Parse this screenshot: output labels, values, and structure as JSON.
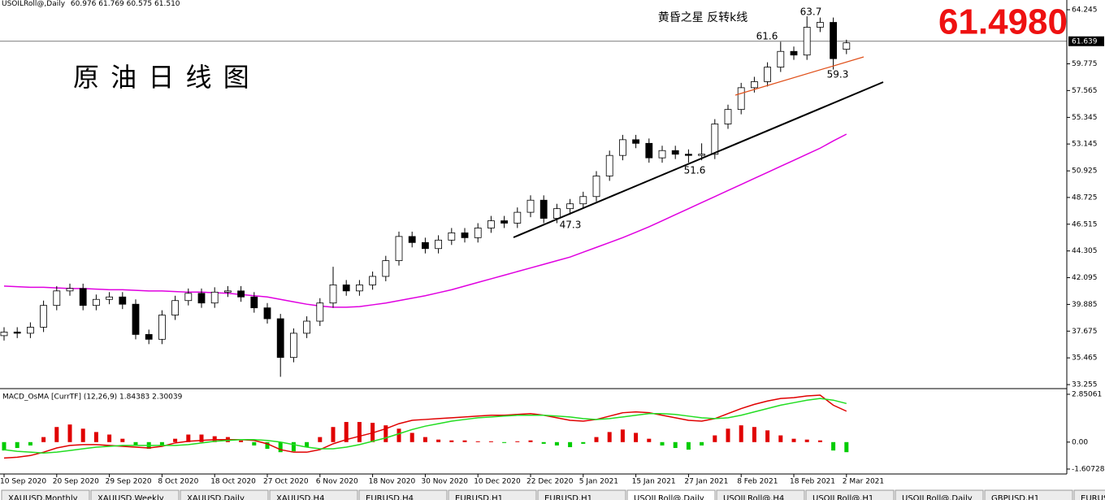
{
  "header": {
    "symbol": "USOILRoll@,Daily",
    "ohlc": [
      "60.976",
      "61.769",
      "60.575",
      "61.510"
    ]
  },
  "headline_price": "61.4980",
  "title": "原 油 日 线 图",
  "pattern_label": "黄昏之星  反转k线",
  "annotations": [
    "63.7",
    "61.6",
    "59.3",
    "51.6",
    "47.3"
  ],
  "tabs": [
    "XAUUSD,Monthly",
    "XAUUSD,Weekly",
    "XAUUSD,Daily",
    "XAUUSD,H4",
    "EURUSD,H4",
    "EURUSD,H1",
    "EURUSD,H1",
    "USOILRoll@,Daily",
    "USOILRoll@,H4",
    "USOILRoll@,H1",
    "USOILRoll@,Daily",
    "GBPUSD,H1",
    "EURUSD,H4"
  ],
  "chart_data": [
    {
      "type": "candlestick",
      "categories": [
        "10 Sep 2020",
        null,
        null,
        null,
        "20 Sep 2020",
        null,
        null,
        null,
        "29 Sep 2020",
        null,
        null,
        null,
        "8 Oct 2020",
        null,
        null,
        null,
        "18 Oct 2020",
        null,
        null,
        null,
        "27 Oct 2020",
        null,
        null,
        null,
        "6 Nov 2020",
        null,
        null,
        null,
        "18 Nov 2020",
        null,
        null,
        null,
        "30 Nov 2020",
        null,
        null,
        null,
        "10 Dec 2020",
        null,
        null,
        null,
        "22 Dec 2020",
        null,
        null,
        null,
        "5 Jan 2021",
        null,
        null,
        null,
        "15 Jan 2021",
        null,
        null,
        null,
        "27 Jan 2021",
        null,
        null,
        null,
        "8 Feb 2021",
        null,
        null,
        null,
        "18 Feb 2021",
        null,
        null,
        null,
        "2 Mar 2021"
      ],
      "open": [
        37.3,
        37.6,
        37.5,
        38.0,
        39.8,
        41.0,
        41.2,
        39.8,
        40.3,
        40.5,
        39.9,
        37.4,
        37.0,
        39.0,
        40.2,
        40.8,
        40.0,
        40.9,
        41.0,
        40.5,
        39.6,
        38.7,
        35.5,
        37.5,
        38.5,
        40.0,
        41.5,
        41.0,
        41.5,
        42.2,
        43.5,
        45.5,
        45.0,
        44.5,
        45.2,
        45.8,
        45.4,
        46.2,
        46.8,
        46.6,
        47.5,
        48.5,
        47.0,
        47.8,
        48.2,
        48.8,
        50.5,
        52.2,
        53.5,
        53.2,
        52.0,
        52.6,
        52.3,
        52.2,
        52.3,
        54.8,
        56.0,
        57.8,
        58.3,
        59.5,
        60.8,
        60.5,
        62.8,
        63.2,
        60.976
      ],
      "high": [
        38.0,
        38.0,
        38.4,
        40.2,
        41.4,
        41.6,
        41.6,
        40.7,
        40.9,
        40.9,
        40.3,
        37.8,
        39.4,
        40.6,
        41.2,
        41.2,
        41.3,
        41.4,
        41.4,
        40.9,
        40.0,
        39.1,
        37.9,
        38.9,
        40.4,
        43.0,
        41.9,
        41.9,
        42.6,
        43.9,
        45.9,
        45.9,
        45.4,
        45.6,
        46.2,
        46.2,
        46.6,
        47.2,
        47.2,
        47.9,
        48.9,
        48.9,
        48.2,
        48.6,
        49.2,
        50.9,
        52.6,
        53.9,
        53.9,
        53.6,
        53.0,
        53.0,
        52.7,
        53.2,
        55.2,
        56.4,
        58.2,
        58.7,
        59.9,
        61.6,
        61.2,
        63.7,
        63.6,
        63.6,
        61.769
      ],
      "low": [
        36.9,
        37.1,
        37.1,
        37.6,
        39.4,
        40.6,
        39.4,
        39.4,
        39.9,
        39.5,
        37.0,
        36.6,
        36.6,
        38.6,
        39.8,
        39.6,
        39.6,
        40.5,
        40.1,
        39.2,
        38.3,
        33.9,
        35.1,
        37.1,
        38.1,
        39.6,
        40.6,
        40.6,
        41.1,
        41.8,
        43.1,
        44.6,
        44.1,
        44.1,
        44.8,
        45.0,
        45.0,
        45.8,
        46.2,
        46.2,
        47.1,
        46.6,
        46.6,
        47.3,
        47.8,
        48.4,
        50.1,
        51.8,
        52.8,
        51.6,
        51.6,
        51.9,
        51.6,
        51.8,
        51.9,
        54.4,
        55.6,
        57.4,
        57.9,
        59.1,
        60.1,
        60.1,
        62.4,
        59.3,
        60.575
      ],
      "close": [
        37.6,
        37.5,
        38.0,
        39.8,
        41.0,
        41.2,
        39.8,
        40.3,
        40.5,
        39.9,
        37.4,
        37.0,
        39.0,
        40.2,
        40.8,
        40.0,
        40.9,
        41.0,
        40.5,
        39.6,
        38.7,
        35.5,
        37.5,
        38.5,
        40.0,
        41.5,
        41.0,
        41.5,
        42.2,
        43.5,
        45.5,
        45.0,
        44.5,
        45.2,
        45.8,
        45.4,
        46.2,
        46.8,
        46.6,
        47.5,
        48.5,
        47.0,
        47.8,
        48.2,
        48.8,
        50.5,
        52.2,
        53.5,
        53.2,
        52.0,
        52.6,
        52.3,
        52.2,
        52.3,
        54.8,
        56.0,
        57.8,
        58.3,
        59.5,
        60.8,
        60.5,
        62.8,
        63.2,
        60.2,
        61.51
      ],
      "ma": {
        "color": "#e000e0",
        "values": [
          41.4,
          41.35,
          41.3,
          41.3,
          41.25,
          41.2,
          41.2,
          41.15,
          41.1,
          41.1,
          41.05,
          41.0,
          41.0,
          40.95,
          40.9,
          40.9,
          40.85,
          40.8,
          40.7,
          40.6,
          40.5,
          40.3,
          40.1,
          39.9,
          39.75,
          39.65,
          39.65,
          39.7,
          39.85,
          40.0,
          40.2,
          40.4,
          40.6,
          40.85,
          41.1,
          41.4,
          41.7,
          42.0,
          42.3,
          42.6,
          42.9,
          43.2,
          43.5,
          43.8,
          44.2,
          44.6,
          45.0,
          45.4,
          45.85,
          46.3,
          46.8,
          47.3,
          47.8,
          48.3,
          48.8,
          49.3,
          49.8,
          50.3,
          50.8,
          51.3,
          51.8,
          52.3,
          52.8,
          53.4,
          53.96
        ]
      },
      "up_color": "#ffffff",
      "down_color": "#000000",
      "current_price": 61.639,
      "ylim": [
        32.99,
        65.05
      ],
      "yticks": [
        64.245,
        59.775,
        57.565,
        55.345,
        53.145,
        50.925,
        48.725,
        46.515,
        44.305,
        42.095,
        39.885,
        37.675,
        35.465,
        33.255
      ]
    },
    {
      "type": "macd",
      "label": "MACD_OsMA [CurrTF] (12,26,9) 1.84383 2.30039",
      "histogram": {
        "up_color": "#e00000",
        "down_color": "#00cc00",
        "values": [
          -0.5,
          -0.35,
          -0.2,
          0.3,
          0.9,
          1.05,
          0.8,
          0.6,
          0.45,
          0.2,
          -0.2,
          -0.4,
          -0.2,
          0.2,
          0.45,
          0.45,
          0.35,
          0.3,
          0.1,
          -0.2,
          -0.4,
          -0.6,
          -0.55,
          -0.3,
          0.3,
          0.9,
          1.2,
          1.2,
          1.15,
          1.0,
          0.8,
          0.55,
          0.3,
          0.15,
          0.1,
          0.1,
          0.05,
          0.05,
          -0.05,
          0.05,
          0.1,
          -0.1,
          -0.2,
          -0.3,
          -0.1,
          0.3,
          0.6,
          0.75,
          0.55,
          0.2,
          -0.2,
          -0.35,
          -0.45,
          -0.2,
          0.4,
          0.8,
          1.0,
          0.9,
          0.7,
          0.4,
          0.2,
          0.15,
          0.1,
          -0.5,
          -0.6
        ]
      },
      "lines": [
        {
          "color": "#e00000",
          "values": [
            -0.95,
            -0.9,
            -0.8,
            -0.6,
            -0.35,
            -0.2,
            -0.15,
            -0.15,
            -0.2,
            -0.25,
            -0.3,
            -0.35,
            -0.25,
            -0.05,
            0.05,
            0.1,
            0.15,
            0.15,
            0.15,
            0.1,
            -0.1,
            -0.45,
            -0.6,
            -0.6,
            -0.45,
            -0.1,
            0.15,
            0.35,
            0.55,
            0.8,
            1.1,
            1.3,
            1.35,
            1.4,
            1.45,
            1.5,
            1.55,
            1.6,
            1.6,
            1.65,
            1.7,
            1.6,
            1.45,
            1.3,
            1.25,
            1.35,
            1.55,
            1.75,
            1.8,
            1.75,
            1.6,
            1.45,
            1.3,
            1.25,
            1.4,
            1.7,
            2.0,
            2.25,
            2.45,
            2.6,
            2.65,
            2.75,
            2.8,
            2.2,
            1.84383
          ]
        },
        {
          "color": "#22dd22",
          "values": [
            -0.45,
            -0.55,
            -0.6,
            -0.65,
            -0.6,
            -0.5,
            -0.4,
            -0.3,
            -0.25,
            -0.2,
            -0.2,
            -0.2,
            -0.2,
            -0.2,
            -0.15,
            -0.05,
            0.05,
            0.1,
            0.15,
            0.15,
            0.1,
            0.0,
            -0.15,
            -0.3,
            -0.4,
            -0.4,
            -0.3,
            -0.15,
            0.05,
            0.25,
            0.5,
            0.75,
            0.95,
            1.1,
            1.25,
            1.35,
            1.45,
            1.5,
            1.55,
            1.6,
            1.6,
            1.6,
            1.55,
            1.5,
            1.4,
            1.35,
            1.4,
            1.5,
            1.6,
            1.7,
            1.7,
            1.65,
            1.55,
            1.45,
            1.4,
            1.45,
            1.6,
            1.8,
            2.0,
            2.2,
            2.35,
            2.5,
            2.6,
            2.5,
            2.30039
          ]
        }
      ],
      "ylim": [
        -1.9,
        3.14
      ],
      "yticks": [
        2.85061,
        {
          "value": 0,
          "label": "0.00"
        },
        -1.60728
      ]
    }
  ]
}
